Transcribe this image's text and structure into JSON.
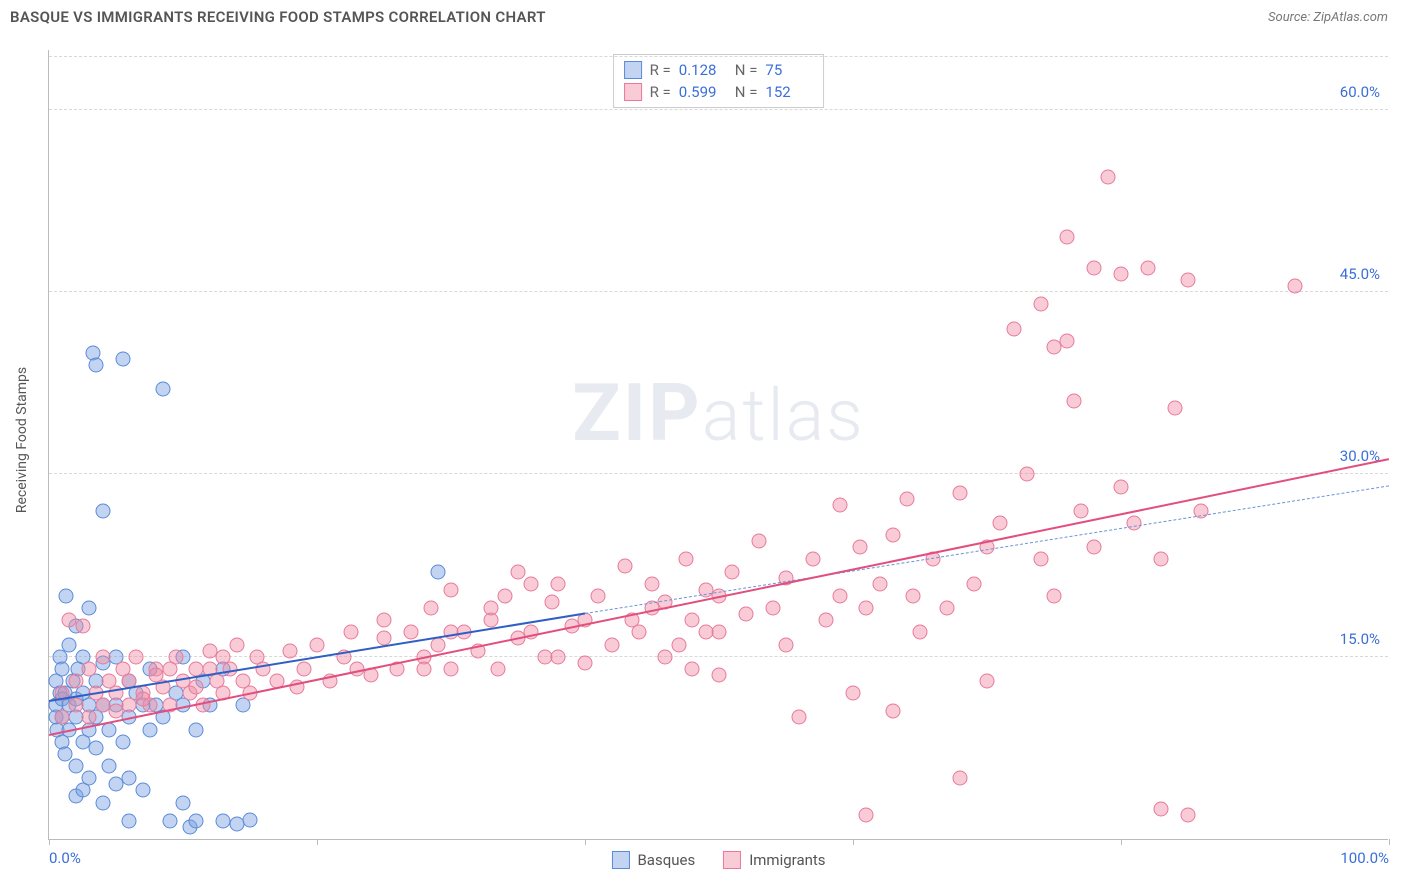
{
  "title": "BASQUE VS IMMIGRANTS RECEIVING FOOD STAMPS CORRELATION CHART",
  "source": "Source: ZipAtlas.com",
  "yaxis_title": "Receiving Food Stamps",
  "watermark": {
    "bold": "ZIP",
    "rest": "atlas"
  },
  "chart": {
    "type": "scatter",
    "background_color": "#ffffff",
    "grid_color": "#d8d8d8",
    "axis_color": "#bbbbbb",
    "label_color": "#3b6fd8",
    "label_fontsize": 15,
    "xlim": [
      0,
      100
    ],
    "ylim": [
      0,
      65
    ],
    "yticks": [
      15,
      30,
      45,
      60
    ],
    "ytick_labels": [
      "15.0%",
      "30.0%",
      "45.0%",
      "60.0%"
    ],
    "xticks": [
      0,
      20,
      40,
      60,
      80,
      100
    ],
    "xtick_labels": {
      "0": "0.0%",
      "100": "100.0%"
    },
    "point_radius": 7.5,
    "point_opacity": 0.55
  },
  "series": [
    {
      "name": "Basques",
      "fill": "rgba(120,160,225,0.45)",
      "stroke": "#5a8bd8",
      "trend_color": "#2f5fc4",
      "trend_dashed_color": "#6a93d8",
      "R_label": "R =",
      "R": "0.128",
      "N_label": "N =",
      "N": "75",
      "trend": {
        "x1": 0,
        "y1": 11.3,
        "x2": 40,
        "y2": 18.5
      },
      "trend_ext": {
        "x1": 40,
        "y1": 18.5,
        "x2": 100,
        "y2": 29.0
      },
      "points": [
        [
          0.5,
          10
        ],
        [
          0.5,
          11
        ],
        [
          0.5,
          13
        ],
        [
          0.6,
          9
        ],
        [
          0.8,
          12
        ],
        [
          0.8,
          15
        ],
        [
          1,
          8
        ],
        [
          1,
          10
        ],
        [
          1,
          11.5
        ],
        [
          1,
          14
        ],
        [
          1.2,
          7
        ],
        [
          1.2,
          12
        ],
        [
          1.3,
          20
        ],
        [
          1.5,
          9
        ],
        [
          1.5,
          11
        ],
        [
          1.5,
          16
        ],
        [
          1.8,
          13
        ],
        [
          2,
          6
        ],
        [
          2,
          10
        ],
        [
          2,
          11.5
        ],
        [
          2,
          17.5
        ],
        [
          2.2,
          14
        ],
        [
          2.5,
          8
        ],
        [
          2.5,
          12
        ],
        [
          2.5,
          15
        ],
        [
          3,
          9
        ],
        [
          3,
          11
        ],
        [
          3,
          19
        ],
        [
          3.3,
          40
        ],
        [
          3.5,
          7.5
        ],
        [
          3.5,
          10
        ],
        [
          3.5,
          13
        ],
        [
          4,
          27
        ],
        [
          4,
          11
        ],
        [
          4,
          14.5
        ],
        [
          4.5,
          6
        ],
        [
          4.5,
          9
        ],
        [
          5,
          11
        ],
        [
          5,
          15
        ],
        [
          5.5,
          39.5
        ],
        [
          5.5,
          8
        ],
        [
          6,
          10
        ],
        [
          6,
          13
        ],
        [
          6,
          1.5
        ],
        [
          6.5,
          12
        ],
        [
          7,
          11
        ],
        [
          7.5,
          9
        ],
        [
          7.5,
          14
        ],
        [
          8,
          11
        ],
        [
          8.5,
          37
        ],
        [
          8.5,
          10
        ],
        [
          9,
          1.5
        ],
        [
          9.5,
          12
        ],
        [
          10,
          11
        ],
        [
          10,
          15
        ],
        [
          10,
          3
        ],
        [
          10.5,
          1
        ],
        [
          11,
          9
        ],
        [
          11,
          1.5
        ],
        [
          11.5,
          13
        ],
        [
          12,
          11
        ],
        [
          13,
          1.5
        ],
        [
          13,
          14
        ],
        [
          14,
          1.2
        ],
        [
          14.5,
          11
        ],
        [
          15,
          1.6
        ],
        [
          29,
          22
        ],
        [
          2,
          3.5
        ],
        [
          2.5,
          4
        ],
        [
          3,
          5
        ],
        [
          4,
          3
        ],
        [
          5,
          4.5
        ],
        [
          6,
          5
        ],
        [
          7,
          4
        ],
        [
          3.5,
          39
        ]
      ]
    },
    {
      "name": "Immigrants",
      "fill": "rgba(240,140,165,0.45)",
      "stroke": "#e77a9a",
      "trend_color": "#e24e7e",
      "R_label": "R =",
      "R": "0.599",
      "N_label": "N =",
      "N": "152",
      "trend": {
        "x1": 0,
        "y1": 8.5,
        "x2": 100,
        "y2": 31.2
      },
      "points": [
        [
          1,
          10
        ],
        [
          1,
          12
        ],
        [
          1.5,
          18
        ],
        [
          2,
          11
        ],
        [
          2,
          13
        ],
        [
          2.5,
          17.5
        ],
        [
          3,
          10
        ],
        [
          3,
          14
        ],
        [
          3.5,
          12
        ],
        [
          4,
          11
        ],
        [
          4,
          15
        ],
        [
          4.5,
          13
        ],
        [
          5,
          10.5
        ],
        [
          5,
          12
        ],
        [
          5.5,
          14
        ],
        [
          6,
          11
        ],
        [
          6,
          13
        ],
        [
          6.5,
          15
        ],
        [
          7,
          12
        ],
        [
          7.5,
          11
        ],
        [
          8,
          14
        ],
        [
          8.5,
          12.5
        ],
        [
          9,
          11
        ],
        [
          9.5,
          15
        ],
        [
          10,
          13
        ],
        [
          10.5,
          12
        ],
        [
          11,
          14
        ],
        [
          11.5,
          11
        ],
        [
          12,
          15.5
        ],
        [
          12.5,
          13
        ],
        [
          13,
          12
        ],
        [
          13.5,
          14
        ],
        [
          14,
          16
        ],
        [
          14.5,
          13
        ],
        [
          15,
          12
        ],
        [
          15.5,
          15
        ],
        [
          16,
          14
        ],
        [
          17,
          13
        ],
        [
          18,
          15.5
        ],
        [
          18.5,
          12.5
        ],
        [
          19,
          14
        ],
        [
          20,
          16
        ],
        [
          21,
          13
        ],
        [
          22,
          15
        ],
        [
          22.5,
          17
        ],
        [
          23,
          14
        ],
        [
          24,
          13.5
        ],
        [
          25,
          16.5
        ],
        [
          25,
          18
        ],
        [
          26,
          14
        ],
        [
          27,
          17
        ],
        [
          28,
          15
        ],
        [
          28.5,
          19
        ],
        [
          29,
          16
        ],
        [
          30,
          14
        ],
        [
          30,
          20.5
        ],
        [
          31,
          17
        ],
        [
          32,
          15.5
        ],
        [
          33,
          18
        ],
        [
          33.5,
          14
        ],
        [
          34,
          20
        ],
        [
          35,
          16.5
        ],
        [
          35,
          22
        ],
        [
          36,
          17
        ],
        [
          37,
          15
        ],
        [
          37.5,
          19.5
        ],
        [
          38,
          21
        ],
        [
          39,
          17.5
        ],
        [
          40,
          18
        ],
        [
          40,
          14.5
        ],
        [
          41,
          20
        ],
        [
          42,
          16
        ],
        [
          43,
          22.5
        ],
        [
          43.5,
          18
        ],
        [
          44,
          17
        ],
        [
          45,
          21
        ],
        [
          46,
          19.5
        ],
        [
          47,
          16
        ],
        [
          47.5,
          23
        ],
        [
          48,
          18
        ],
        [
          49,
          20.5
        ],
        [
          50,
          17
        ],
        [
          50,
          13.5
        ],
        [
          51,
          22
        ],
        [
          52,
          18.5
        ],
        [
          53,
          24.5
        ],
        [
          54,
          19
        ],
        [
          55,
          16
        ],
        [
          55,
          21.5
        ],
        [
          56,
          10
        ],
        [
          57,
          23
        ],
        [
          58,
          18
        ],
        [
          59,
          27.5
        ],
        [
          59,
          20
        ],
        [
          60,
          12
        ],
        [
          60.5,
          24
        ],
        [
          61,
          19
        ],
        [
          61,
          2
        ],
        [
          62,
          21
        ],
        [
          63,
          10.5
        ],
        [
          63,
          25
        ],
        [
          64,
          28
        ],
        [
          64.5,
          20
        ],
        [
          65,
          17
        ],
        [
          66,
          23
        ],
        [
          67,
          19
        ],
        [
          68,
          28.5
        ],
        [
          68,
          5
        ],
        [
          69,
          21
        ],
        [
          70,
          24
        ],
        [
          70,
          13
        ],
        [
          71,
          26
        ],
        [
          72,
          42
        ],
        [
          73,
          30
        ],
        [
          74,
          23
        ],
        [
          74,
          44
        ],
        [
          75,
          20
        ],
        [
          75,
          40.5
        ],
        [
          76,
          49.5
        ],
        [
          76,
          41
        ],
        [
          76.5,
          36
        ],
        [
          77,
          27
        ],
        [
          78,
          47
        ],
        [
          78,
          24
        ],
        [
          79,
          54.5
        ],
        [
          80,
          46.5
        ],
        [
          80,
          29
        ],
        [
          81,
          26
        ],
        [
          82,
          47
        ],
        [
          83,
          2.5
        ],
        [
          83,
          23
        ],
        [
          84,
          35.5
        ],
        [
          85,
          46
        ],
        [
          85,
          2
        ],
        [
          86,
          27
        ],
        [
          93,
          45.5
        ],
        [
          45,
          19
        ],
        [
          46,
          15
        ],
        [
          48,
          14
        ],
        [
          49,
          17
        ],
        [
          50,
          20
        ],
        [
          33,
          19
        ],
        [
          36,
          21
        ],
        [
          38,
          15
        ],
        [
          30,
          17
        ],
        [
          28,
          14
        ],
        [
          7,
          11.5
        ],
        [
          8,
          13.5
        ],
        [
          9,
          14
        ],
        [
          11,
          12.5
        ],
        [
          12,
          14
        ],
        [
          13,
          15
        ]
      ]
    }
  ],
  "bottom_legend": [
    {
      "label": "Basques",
      "fill": "rgba(120,160,225,0.45)",
      "stroke": "#5a8bd8"
    },
    {
      "label": "Immigrants",
      "fill": "rgba(240,140,165,0.45)",
      "stroke": "#e77a9a"
    }
  ]
}
